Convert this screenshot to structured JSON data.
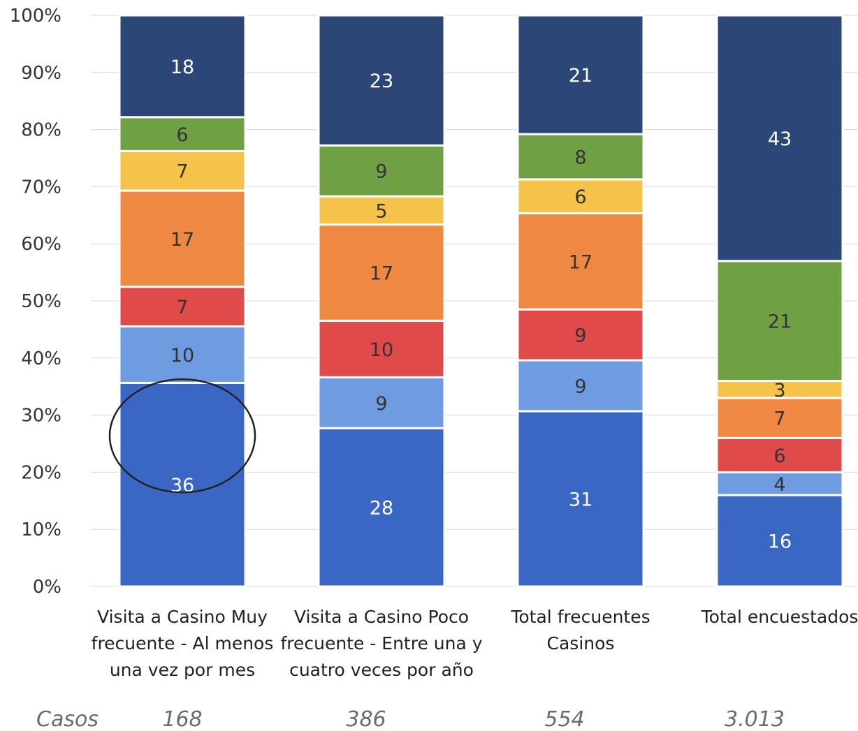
{
  "chart_data": {
    "type": "bar",
    "stacked": true,
    "percent_axis": true,
    "categories": [
      [
        "Visita a Casino Muy",
        "frecuente - Al menos",
        "una vez por mes"
      ],
      [
        "Visita a Casino Poco",
        "frecuente - Entre una y",
        "cuatro veces por año"
      ],
      [
        "Total frecuentes",
        "Casinos"
      ],
      [
        "Total encuestados"
      ]
    ],
    "series": [
      {
        "values": [
          36,
          28,
          31,
          16
        ],
        "color": "#3a66c4",
        "label_color": "#ffffff"
      },
      {
        "values": [
          10,
          9,
          9,
          4
        ],
        "color": "#6f9be0",
        "label_color": "#333333"
      },
      {
        "values": [
          7,
          10,
          9,
          6
        ],
        "color": "#e04a4a",
        "label_color": "#333333"
      },
      {
        "values": [
          17,
          17,
          17,
          7
        ],
        "color": "#ee8843",
        "label_color": "#333333"
      },
      {
        "values": [
          7,
          5,
          6,
          3
        ],
        "color": "#f6c34a",
        "label_color": "#333333"
      },
      {
        "values": [
          6,
          9,
          8,
          21
        ],
        "color": "#6fa044",
        "label_color": "#333333"
      },
      {
        "values": [
          18,
          23,
          21,
          43
        ],
        "color": "#2c4677",
        "label_color": "#ffffff"
      }
    ],
    "y_ticks": [
      "0%",
      "10%",
      "20%",
      "30%",
      "40%",
      "50%",
      "60%",
      "70%",
      "80%",
      "90%",
      "100%"
    ],
    "ylim": [
      0,
      100
    ],
    "grid": true,
    "legend": "none",
    "highlight": {
      "category_index": 0,
      "series_index": 0,
      "shape": "ellipse"
    }
  },
  "casos": {
    "label": "Casos",
    "values": [
      "168",
      "386",
      "554",
      "3.013"
    ]
  }
}
